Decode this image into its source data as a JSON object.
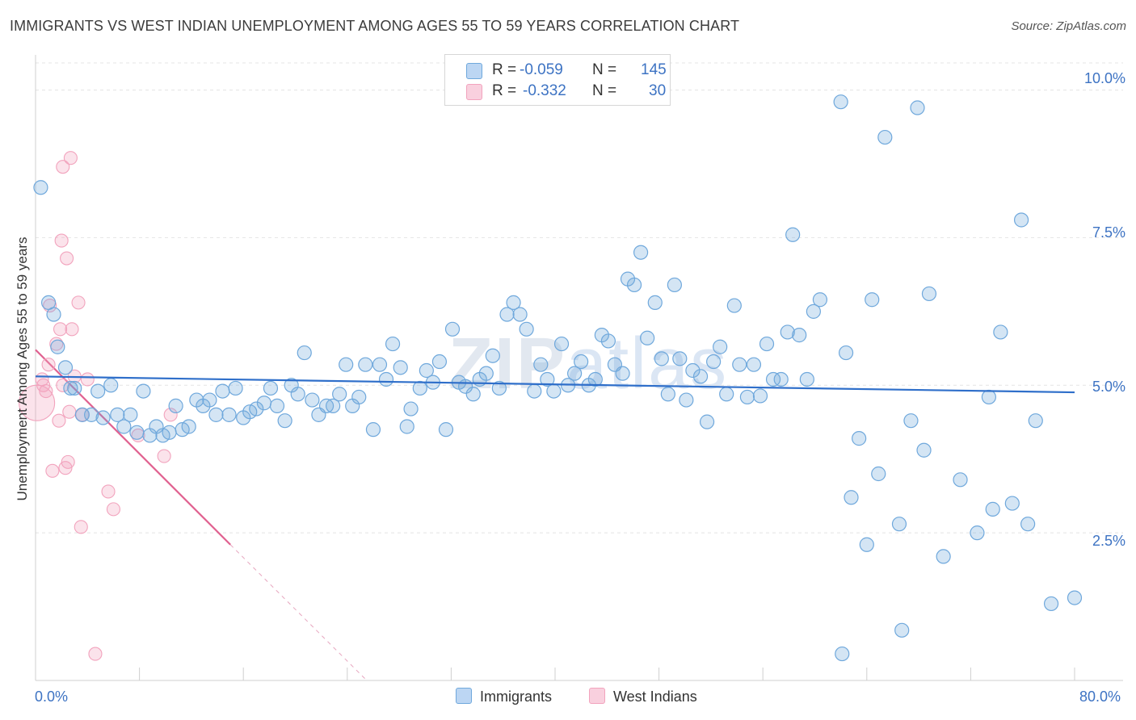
{
  "header": {
    "title": "IMMIGRANTS VS WEST INDIAN UNEMPLOYMENT AMONG AGES 55 TO 59 YEARS CORRELATION CHART",
    "source": "Source: ZipAtlas.com"
  },
  "watermark": {
    "zip": "ZIP",
    "atlas": "atlas"
  },
  "legend": {
    "rows": [
      {
        "r_label": "R =",
        "r_value": "-0.059",
        "n_label": "N =",
        "n_value": "145"
      },
      {
        "r_label": "R =",
        "r_value": "-0.332",
        "n_label": "N =",
        "n_value": "30"
      }
    ]
  },
  "bottom_legend": {
    "immigrants": "Immigrants",
    "west_indians": "West Indians"
  },
  "colors": {
    "blue": "#6fa8dc",
    "blue_line": "#2f6fca",
    "pink": "#f2a3bd",
    "pink_line": "#e0608f",
    "tick_text": "#3d73c3"
  },
  "chart_data": {
    "type": "scatter",
    "title": "IMMIGRANTS VS WEST INDIAN UNEMPLOYMENT AMONG AGES 55 TO 59 YEARS CORRELATION CHART",
    "xlabel": "",
    "ylabel": "Unemployment Among Ages 55 to 59 years",
    "xlim": [
      0,
      80
    ],
    "ylim": [
      0,
      10.5
    ],
    "x_tick_labels": [
      "0.0%",
      "80.0%"
    ],
    "y_ticks": [
      2.5,
      5.0,
      7.5,
      10.0
    ],
    "y_tick_labels": [
      "2.5%",
      "5.0%",
      "7.5%",
      "10.0%"
    ],
    "series": [
      {
        "name": "Immigrants",
        "R": -0.059,
        "N": 145,
        "trend": {
          "x": [
            0,
            80
          ],
          "y": [
            5.15,
            4.88
          ]
        },
        "points": [
          [
            0.4,
            8.35
          ],
          [
            1.0,
            6.4
          ],
          [
            1.4,
            6.2
          ],
          [
            1.7,
            5.65
          ],
          [
            2.3,
            5.3
          ],
          [
            2.7,
            4.95
          ],
          [
            3.0,
            4.95
          ],
          [
            3.6,
            4.5
          ],
          [
            4.3,
            4.5
          ],
          [
            4.8,
            4.9
          ],
          [
            5.2,
            4.45
          ],
          [
            5.8,
            5.0
          ],
          [
            6.3,
            4.5
          ],
          [
            6.8,
            4.3
          ],
          [
            7.3,
            4.5
          ],
          [
            7.8,
            4.2
          ],
          [
            8.3,
            4.9
          ],
          [
            8.8,
            4.15
          ],
          [
            9.3,
            4.3
          ],
          [
            9.8,
            4.15
          ],
          [
            10.3,
            4.2
          ],
          [
            10.8,
            4.65
          ],
          [
            11.3,
            4.25
          ],
          [
            11.8,
            4.3
          ],
          [
            12.4,
            4.75
          ],
          [
            12.9,
            4.65
          ],
          [
            13.4,
            4.75
          ],
          [
            13.9,
            4.5
          ],
          [
            14.4,
            4.9
          ],
          [
            14.9,
            4.5
          ],
          [
            15.4,
            4.95
          ],
          [
            16.0,
            4.45
          ],
          [
            16.5,
            4.55
          ],
          [
            17.0,
            4.6
          ],
          [
            17.6,
            4.7
          ],
          [
            18.1,
            4.95
          ],
          [
            18.6,
            4.65
          ],
          [
            19.2,
            4.4
          ],
          [
            19.7,
            5.0
          ],
          [
            20.2,
            4.85
          ],
          [
            20.7,
            5.55
          ],
          [
            21.3,
            4.75
          ],
          [
            21.8,
            4.5
          ],
          [
            22.4,
            4.65
          ],
          [
            22.9,
            4.65
          ],
          [
            23.4,
            4.85
          ],
          [
            23.9,
            5.35
          ],
          [
            24.4,
            4.65
          ],
          [
            24.9,
            4.8
          ],
          [
            25.4,
            5.35
          ],
          [
            26.0,
            4.25
          ],
          [
            26.5,
            5.35
          ],
          [
            27.0,
            5.1
          ],
          [
            27.5,
            5.7
          ],
          [
            28.1,
            5.3
          ],
          [
            28.6,
            4.3
          ],
          [
            28.9,
            4.6
          ],
          [
            29.6,
            4.95
          ],
          [
            30.1,
            5.25
          ],
          [
            30.6,
            5.05
          ],
          [
            31.1,
            5.4
          ],
          [
            31.6,
            4.25
          ],
          [
            32.1,
            5.95
          ],
          [
            32.6,
            5.05
          ],
          [
            33.1,
            4.98
          ],
          [
            33.7,
            4.85
          ],
          [
            34.2,
            5.1
          ],
          [
            34.7,
            5.2
          ],
          [
            35.2,
            5.5
          ],
          [
            35.7,
            4.95
          ],
          [
            36.3,
            6.2
          ],
          [
            36.8,
            6.4
          ],
          [
            37.3,
            6.2
          ],
          [
            37.8,
            5.95
          ],
          [
            38.4,
            4.9
          ],
          [
            38.9,
            5.35
          ],
          [
            39.4,
            5.1
          ],
          [
            39.9,
            4.9
          ],
          [
            40.5,
            5.7
          ],
          [
            41.0,
            5.0
          ],
          [
            41.5,
            5.2
          ],
          [
            42.0,
            5.4
          ],
          [
            42.6,
            5.0
          ],
          [
            43.1,
            5.1
          ],
          [
            43.6,
            5.85
          ],
          [
            44.1,
            5.75
          ],
          [
            44.6,
            5.35
          ],
          [
            45.2,
            5.2
          ],
          [
            45.6,
            6.8
          ],
          [
            46.1,
            6.7
          ],
          [
            46.6,
            7.25
          ],
          [
            47.1,
            5.8
          ],
          [
            47.7,
            6.4
          ],
          [
            48.2,
            5.45
          ],
          [
            48.7,
            4.85
          ],
          [
            49.2,
            6.7
          ],
          [
            49.6,
            5.45
          ],
          [
            50.1,
            4.75
          ],
          [
            50.6,
            5.25
          ],
          [
            51.2,
            5.15
          ],
          [
            51.7,
            4.38
          ],
          [
            52.2,
            5.4
          ],
          [
            52.7,
            5.65
          ],
          [
            53.2,
            4.85
          ],
          [
            53.8,
            6.35
          ],
          [
            54.2,
            5.35
          ],
          [
            54.8,
            4.8
          ],
          [
            55.3,
            5.35
          ],
          [
            55.8,
            4.82
          ],
          [
            56.3,
            5.7
          ],
          [
            56.8,
            5.1
          ],
          [
            57.4,
            5.1
          ],
          [
            57.9,
            5.9
          ],
          [
            58.3,
            7.55
          ],
          [
            58.8,
            5.85
          ],
          [
            59.4,
            5.1
          ],
          [
            59.9,
            6.25
          ],
          [
            60.4,
            6.45
          ],
          [
            62.0,
            9.8
          ],
          [
            62.4,
            5.55
          ],
          [
            62.8,
            3.1
          ],
          [
            63.4,
            4.1
          ],
          [
            64.0,
            2.3
          ],
          [
            64.4,
            6.45
          ],
          [
            64.9,
            3.5
          ],
          [
            65.4,
            9.2
          ],
          [
            66.5,
            2.65
          ],
          [
            67.4,
            4.4
          ],
          [
            67.9,
            9.7
          ],
          [
            68.4,
            3.9
          ],
          [
            68.8,
            6.55
          ],
          [
            69.9,
            2.1
          ],
          [
            71.2,
            3.4
          ],
          [
            72.5,
            2.5
          ],
          [
            73.4,
            4.8
          ],
          [
            73.7,
            2.9
          ],
          [
            74.3,
            5.9
          ],
          [
            75.2,
            3.0
          ],
          [
            75.9,
            7.8
          ],
          [
            76.4,
            2.65
          ],
          [
            77.0,
            4.4
          ],
          [
            78.2,
            1.3
          ],
          [
            80.0,
            1.4
          ],
          [
            62.1,
            0.45
          ],
          [
            66.7,
            0.85
          ]
        ]
      },
      {
        "name": "West Indians",
        "R": -0.332,
        "N": 30,
        "trend": {
          "x": [
            0,
            15
          ],
          "y": [
            5.6,
            2.3
          ]
        },
        "trend_dashed": {
          "x": [
            15,
            25.5
          ],
          "y": [
            2.3,
            0.0
          ]
        },
        "points": [
          [
            0.1,
            4.7
          ],
          [
            0.5,
            5.1
          ],
          [
            0.6,
            5.0
          ],
          [
            0.8,
            4.9
          ],
          [
            1.0,
            5.35
          ],
          [
            1.1,
            6.35
          ],
          [
            1.3,
            3.55
          ],
          [
            1.6,
            5.7
          ],
          [
            1.8,
            4.4
          ],
          [
            1.9,
            5.95
          ],
          [
            2.0,
            7.45
          ],
          [
            2.1,
            8.7
          ],
          [
            2.1,
            5.0
          ],
          [
            2.3,
            3.6
          ],
          [
            2.4,
            7.15
          ],
          [
            2.5,
            3.7
          ],
          [
            2.6,
            4.55
          ],
          [
            2.7,
            8.85
          ],
          [
            2.8,
            5.95
          ],
          [
            3.0,
            5.15
          ],
          [
            3.3,
            6.4
          ],
          [
            3.5,
            2.6
          ],
          [
            3.6,
            4.5
          ],
          [
            4.0,
            5.1
          ],
          [
            4.6,
            0.45
          ],
          [
            5.6,
            3.2
          ],
          [
            6.0,
            2.9
          ],
          [
            7.9,
            4.15
          ],
          [
            9.9,
            3.8
          ],
          [
            10.4,
            4.5
          ]
        ]
      }
    ]
  }
}
